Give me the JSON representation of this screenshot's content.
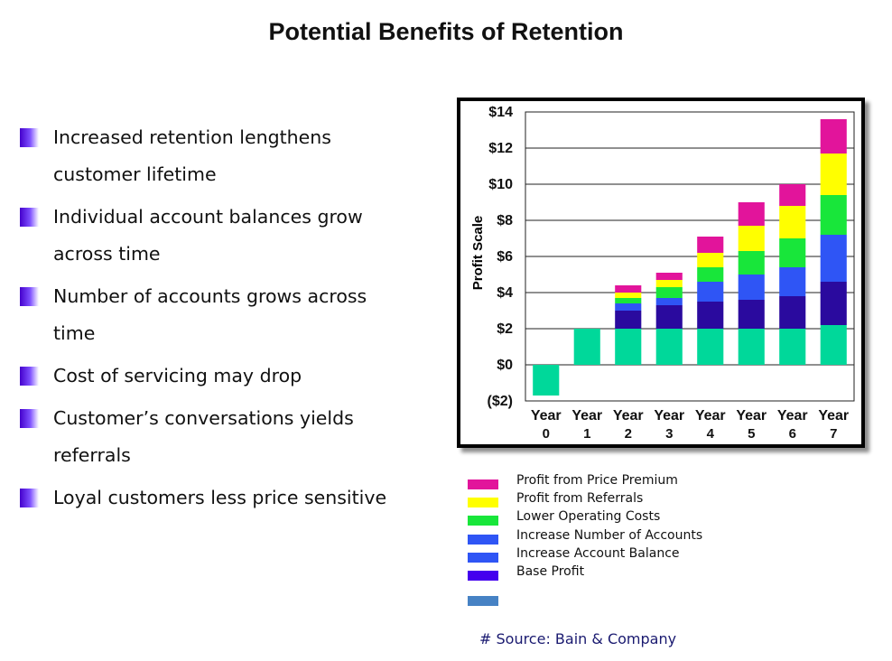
{
  "title": "Potential Benefits of Retention",
  "bullets": [
    "Increased retention lengthens customer lifetime",
    "Individual account balances grow across time",
    "Number of accounts grows across time",
    "Cost of servicing may drop",
    "Customer’s conversations yields referrals",
    "Loyal customers less price sensitive"
  ],
  "colors": {
    "bullet": "#5b2ff0",
    "frame": "#000000"
  },
  "chart_data": {
    "type": "bar",
    "stacked": true,
    "ylabel": "Profit Scale",
    "xlabel": "",
    "ylim": [
      -2,
      14
    ],
    "grid": true,
    "categories": [
      [
        "Year",
        "0"
      ],
      [
        "Year",
        "1"
      ],
      [
        "Year",
        "2"
      ],
      [
        "Year",
        "3"
      ],
      [
        "Year",
        "4"
      ],
      [
        "Year",
        "5"
      ],
      [
        "Year",
        "6"
      ],
      [
        "Year",
        "7"
      ]
    ],
    "yticks": [
      {
        "value": 14,
        "label": "$14"
      },
      {
        "value": 12,
        "label": "$12"
      },
      {
        "value": 10,
        "label": "$10"
      },
      {
        "value": 8,
        "label": "$8"
      },
      {
        "value": 6,
        "label": "$6"
      },
      {
        "value": 4,
        "label": "$4"
      },
      {
        "value": 2,
        "label": "$2"
      },
      {
        "value": 0,
        "label": "$0"
      },
      {
        "value": -2,
        "label": "($2)"
      }
    ],
    "series": [
      {
        "color": "#00d89a",
        "values": [
          -1.7,
          2.0,
          2.0,
          2.0,
          2.0,
          2.0,
          2.0,
          2.2
        ]
      },
      {
        "color": "#2a0a9e",
        "values": [
          0,
          0,
          1.0,
          1.3,
          1.5,
          1.6,
          1.8,
          2.4
        ]
      },
      {
        "color": "#2f55f5",
        "values": [
          0,
          0,
          0.4,
          0.4,
          1.1,
          1.4,
          1.6,
          2.6
        ]
      },
      {
        "color": "#18e63a",
        "values": [
          0,
          0,
          0.3,
          0.6,
          0.8,
          1.3,
          1.6,
          2.2
        ]
      },
      {
        "color": "#ffff00",
        "values": [
          0,
          0,
          0.3,
          0.4,
          0.8,
          1.4,
          1.8,
          2.3
        ]
      },
      {
        "color": "#e2149b",
        "values": [
          0,
          0,
          0.4,
          0.4,
          0.9,
          1.3,
          1.2,
          1.9
        ]
      }
    ]
  },
  "legend": {
    "items": [
      {
        "label": "Profit from Price Premium",
        "color": "#e2149b"
      },
      {
        "label": "Profit from Referrals",
        "color": "#ffff00"
      },
      {
        "label": "Lower Operating Costs",
        "color": "#18e63a"
      },
      {
        "label": "Increase Number of Accounts",
        "color": "#2f55f5"
      },
      {
        "label": "Increase Account Balance",
        "color": "#4400ee"
      },
      {
        "label": "Base Profit",
        "color": "#4682c4"
      }
    ]
  },
  "source": "# Source: Bain & Company"
}
